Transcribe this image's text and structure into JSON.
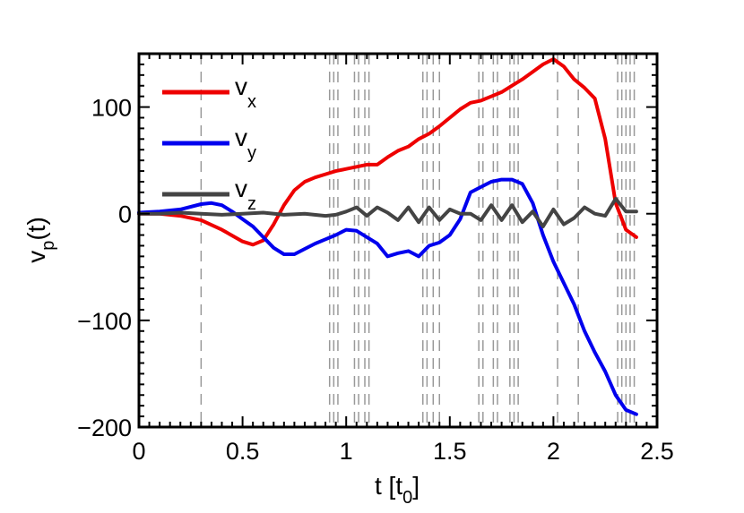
{
  "chart_data": {
    "type": "line",
    "title": "",
    "xlabel": "t [t",
    "xlabel_sub": "0",
    "xlabel_suffix": "]",
    "ylabel": "v",
    "ylabel_sub": "p",
    "ylabel_suffix": "(t)",
    "xlim": [
      0,
      2.5
    ],
    "ylim": [
      -200,
      150
    ],
    "xticks": [
      0,
      0.5,
      1,
      1.5,
      2,
      2.5
    ],
    "xtick_labels": [
      "0",
      "0.5",
      "1",
      "1.5",
      "2",
      "2.5"
    ],
    "yticks": [
      -200,
      -100,
      0,
      100
    ],
    "ytick_labels": [
      "−200",
      "−100",
      "0",
      "100"
    ],
    "vlines": [
      0.3,
      0.92,
      0.94,
      0.96,
      1.04,
      1.06,
      1.09,
      1.11,
      1.37,
      1.39,
      1.42,
      1.45,
      1.64,
      1.66,
      1.71,
      1.73,
      1.79,
      1.81,
      1.83,
      2.02,
      2.12,
      2.31,
      2.33,
      2.35,
      2.37,
      2.39
    ],
    "series": [
      {
        "name": "v",
        "sub": "x",
        "color": "#ee0000",
        "x": [
          0,
          0.1,
          0.2,
          0.3,
          0.4,
          0.5,
          0.55,
          0.6,
          0.65,
          0.7,
          0.75,
          0.8,
          0.85,
          0.9,
          0.95,
          1.0,
          1.05,
          1.1,
          1.15,
          1.2,
          1.25,
          1.3,
          1.35,
          1.4,
          1.45,
          1.5,
          1.55,
          1.6,
          1.65,
          1.7,
          1.75,
          1.8,
          1.85,
          1.9,
          1.95,
          2.0,
          2.05,
          2.1,
          2.15,
          2.2,
          2.25,
          2.3,
          2.35,
          2.4
        ],
        "y": [
          0,
          0,
          -2,
          -6,
          -15,
          -26,
          -29,
          -25,
          -10,
          8,
          22,
          30,
          34,
          37,
          40,
          42,
          44,
          46,
          46,
          53,
          59,
          63,
          70,
          75,
          82,
          90,
          98,
          104,
          106,
          110,
          114,
          120,
          126,
          133,
          140,
          145,
          138,
          126,
          118,
          108,
          70,
          10,
          -15,
          -22
        ]
      },
      {
        "name": "v",
        "sub": "y",
        "color": "#0000ee",
        "x": [
          0,
          0.1,
          0.2,
          0.3,
          0.35,
          0.4,
          0.45,
          0.5,
          0.55,
          0.6,
          0.65,
          0.7,
          0.75,
          0.8,
          0.85,
          0.9,
          0.95,
          1.0,
          1.05,
          1.1,
          1.15,
          1.2,
          1.25,
          1.3,
          1.35,
          1.4,
          1.45,
          1.5,
          1.55,
          1.6,
          1.65,
          1.7,
          1.75,
          1.8,
          1.85,
          1.9,
          1.95,
          2.0,
          2.05,
          2.1,
          2.15,
          2.2,
          2.25,
          2.3,
          2.35,
          2.4
        ],
        "y": [
          1,
          2,
          4,
          9,
          10,
          8,
          2,
          -5,
          -12,
          -22,
          -32,
          -38,
          -38,
          -33,
          -28,
          -24,
          -20,
          -15,
          -16,
          -22,
          -28,
          -40,
          -37,
          -35,
          -40,
          -30,
          -27,
          -20,
          -5,
          20,
          25,
          30,
          32,
          32,
          28,
          10,
          -20,
          -45,
          -65,
          -85,
          -110,
          -130,
          -148,
          -170,
          -184,
          -188
        ]
      },
      {
        "name": "v",
        "sub": "z",
        "color": "#444444",
        "x": [
          0,
          0.1,
          0.2,
          0.3,
          0.4,
          0.5,
          0.6,
          0.7,
          0.8,
          0.9,
          0.95,
          1.0,
          1.05,
          1.1,
          1.15,
          1.2,
          1.25,
          1.3,
          1.35,
          1.4,
          1.45,
          1.5,
          1.55,
          1.6,
          1.65,
          1.7,
          1.75,
          1.8,
          1.85,
          1.9,
          1.95,
          2.0,
          2.05,
          2.1,
          2.15,
          2.2,
          2.25,
          2.3,
          2.35,
          2.4
        ],
        "y": [
          0,
          0,
          1,
          0,
          -1,
          0,
          1,
          -1,
          0,
          -2,
          -1,
          2,
          6,
          -2,
          6,
          1,
          -6,
          6,
          -8,
          6,
          -6,
          4,
          0,
          0,
          -6,
          8,
          -6,
          8,
          -8,
          2,
          -12,
          4,
          -10,
          -4,
          6,
          0,
          -2,
          14,
          2,
          2
        ]
      }
    ]
  }
}
